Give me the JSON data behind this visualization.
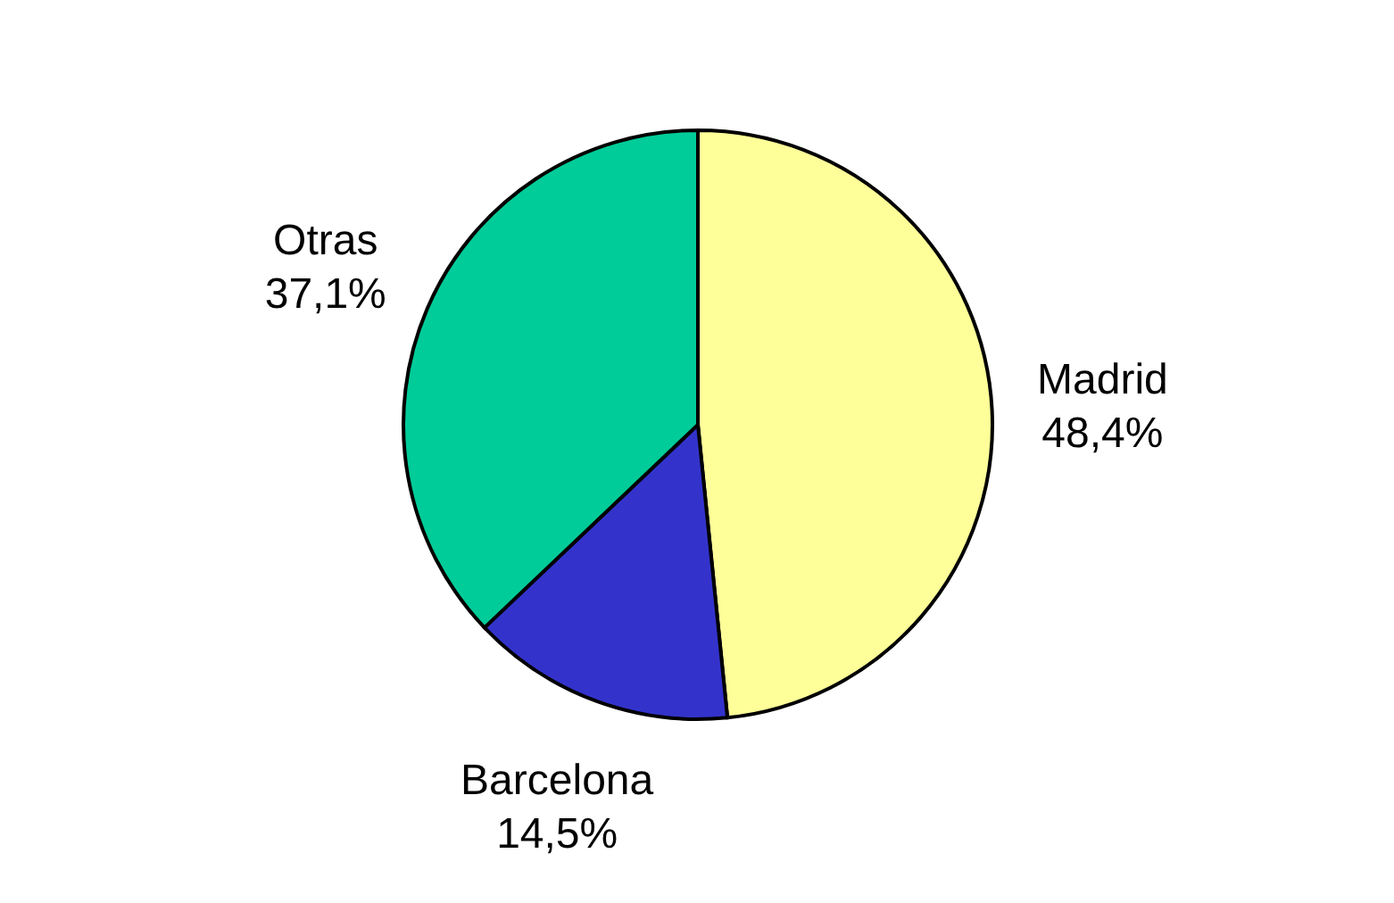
{
  "chart_data": {
    "type": "pie",
    "categories": [
      "Madrid",
      "Barcelona",
      "Otras"
    ],
    "values": [
      48.4,
      14.5,
      37.1
    ],
    "value_labels": [
      "48,4%",
      "14,5%",
      "37,1%"
    ],
    "colors": [
      "#ffff99",
      "#3333cc",
      "#00cc99"
    ]
  }
}
